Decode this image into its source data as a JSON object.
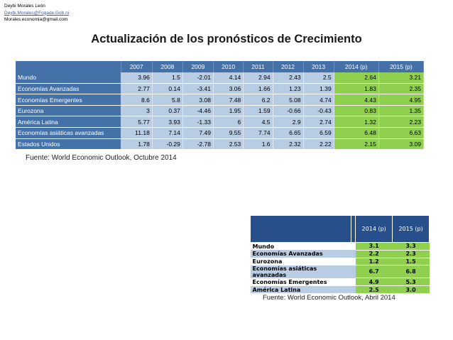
{
  "author": {
    "name": "Deybi Morales León",
    "email1": "Deybi.Morales@Fogade.Gob.ni",
    "email2": "Morales.economia@gmail.com"
  },
  "title": "Actualización de los pronósticos de Crecimiento",
  "table1": {
    "headers": [
      "2007",
      "2008",
      "2009",
      "2010",
      "2011",
      "2012",
      "2013",
      "2014 (p)",
      "2015 (p)"
    ],
    "rows": [
      {
        "label": "Mundo",
        "values": [
          "3.96",
          "1.5",
          "-2.01",
          "4.14",
          "2.94",
          "2.43",
          "2.5",
          "2.64",
          "3.21"
        ]
      },
      {
        "label": "Economías Avanzadas",
        "values": [
          "2.77",
          "0.14",
          "-3.41",
          "3.06",
          "1.66",
          "1.23",
          "1.39",
          "1.83",
          "2.35"
        ]
      },
      {
        "label": "Economías Emergentes",
        "values": [
          "8.6",
          "5.8",
          "3.08",
          "7.48",
          "6.2",
          "5.08",
          "4.74",
          "4.43",
          "4.95"
        ]
      },
      {
        "label": "Eurozona",
        "values": [
          "3",
          "0.37",
          "-4.46",
          "1.95",
          "1.59",
          "-0.66",
          "-0.43",
          "0.83",
          "1.35"
        ]
      },
      {
        "label": "América Latina",
        "values": [
          "5.77",
          "3.93",
          "-1.33",
          "6",
          "4.5",
          "2.9",
          "2.74",
          "1.32",
          "2.23"
        ]
      },
      {
        "label": "Economías asiáticas avanzadas",
        "values": [
          "11.18",
          "7.14",
          "7.49",
          "9.55",
          "7.74",
          "6.65",
          "6.59",
          "6.48",
          "6.63"
        ]
      },
      {
        "label": "Estados Unidos",
        "values": [
          "1.78",
          "-0.29",
          "-2.78",
          "2.53",
          "1.6",
          "2.32",
          "2.22",
          "2.15",
          "3.09"
        ]
      }
    ],
    "source": "Fuente: World Economic Outlook, Octubre 2014"
  },
  "table2": {
    "headers": [
      "2014 (p)",
      "2015 (p)"
    ],
    "rows": [
      {
        "label": "Mundo",
        "values": [
          "3.1",
          "3.3"
        ]
      },
      {
        "label": "Economías Avanzadas",
        "values": [
          "2.2",
          "2.3"
        ]
      },
      {
        "label": "Eurozona",
        "values": [
          "1.2",
          "1.5"
        ]
      },
      {
        "label": "Economías asiáticas avanzadas",
        "values": [
          "6.7",
          "6.8"
        ]
      },
      {
        "label": "Economías Emergentes",
        "values": [
          "4.9",
          "5.3"
        ]
      },
      {
        "label": "América Latina",
        "values": [
          "2.5",
          "3.0"
        ]
      }
    ],
    "source": "Fuente: World Economic Outlook, Abril 2014"
  },
  "colors": {
    "header_blue": "#4472a8",
    "cell_light_blue": "#b8cce4",
    "projection_green": "#8fd14f",
    "dark_blue": "#264f8c"
  }
}
